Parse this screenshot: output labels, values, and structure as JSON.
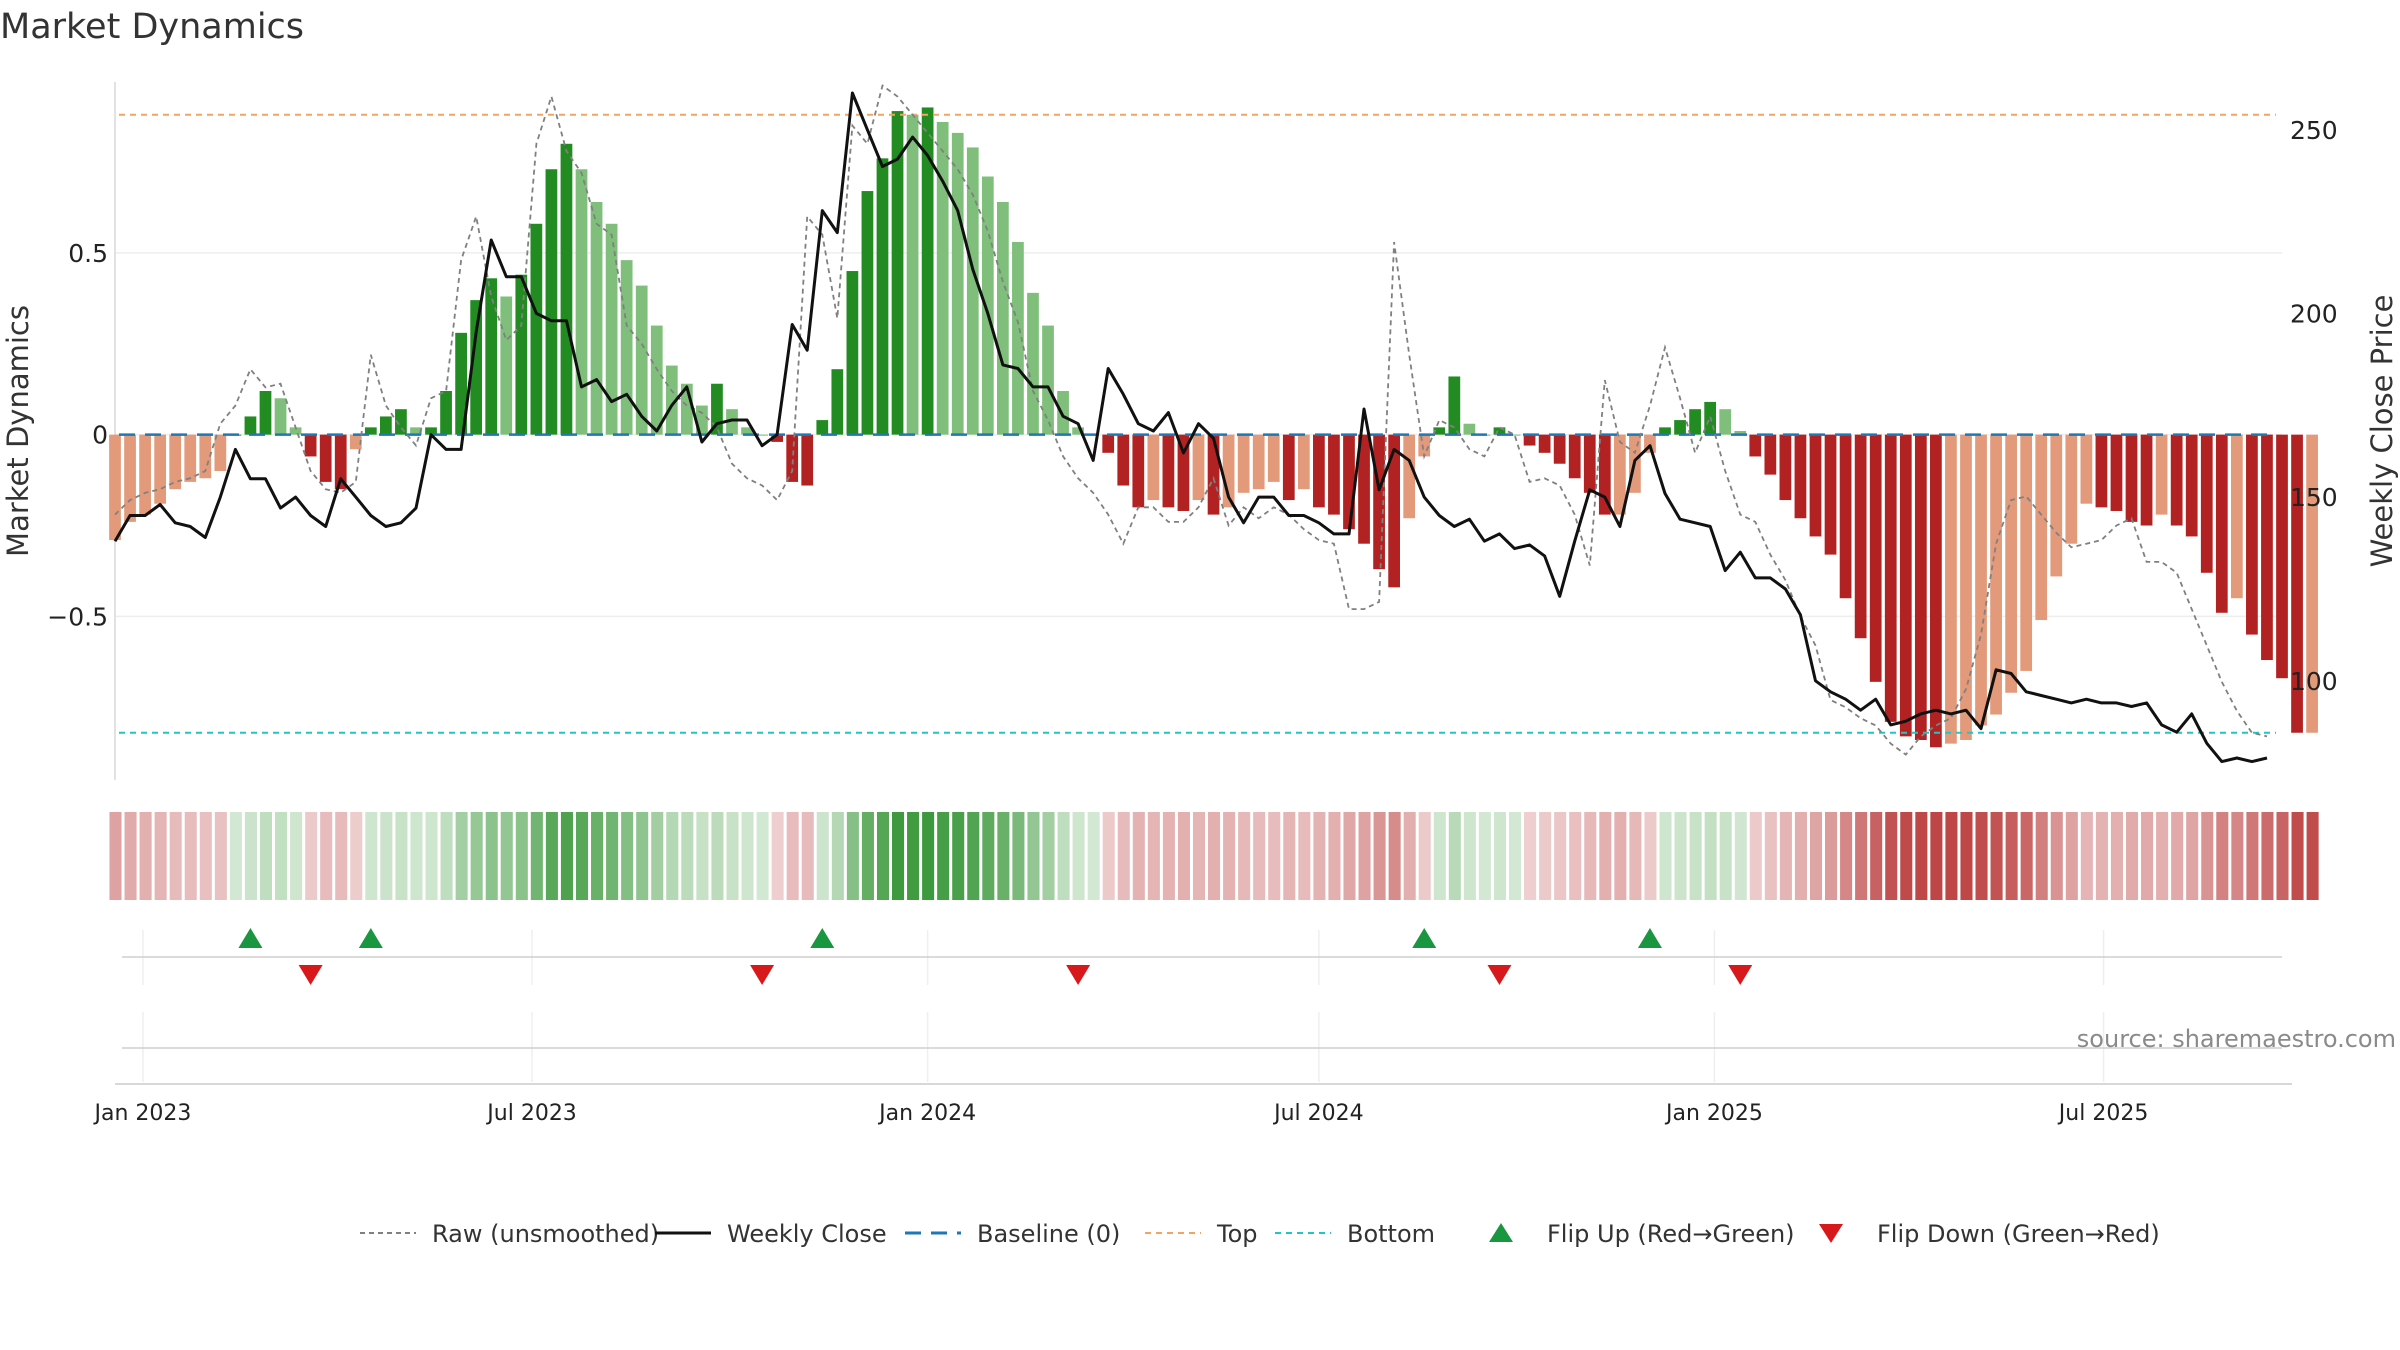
{
  "chart_data": {
    "type": "bar+line",
    "title": "Market Dynamics",
    "source": "source: sharemaestro.com",
    "left_axis": {
      "label": "Market Dynamics",
      "ylim": [
        -0.95,
        0.97
      ],
      "ticks": [
        -0.5,
        0,
        0.5
      ],
      "tick_labels": [
        "−0.5",
        "0",
        "0.5"
      ]
    },
    "right_axis": {
      "label": "Weekly Close Price",
      "ylim": [
        73,
        263
      ],
      "ticks": [
        100,
        150,
        200,
        250
      ],
      "tick_labels": [
        "100",
        "150",
        "200",
        "250"
      ]
    },
    "x_axis": {
      "start": "2022-12-19",
      "end": "2025-09-22",
      "ticks": [
        {
          "date": "2023-01-01",
          "label": "Jan 2023"
        },
        {
          "date": "2023-07-01",
          "label": "Jul 2023"
        },
        {
          "date": "2024-01-01",
          "label": "Jan 2024"
        },
        {
          "date": "2024-07-01",
          "label": "Jul 2024"
        },
        {
          "date": "2025-01-01",
          "label": "Jan 2025"
        },
        {
          "date": "2025-07-01",
          "label": "Jul 2025"
        }
      ]
    },
    "first_week": "2022-12-19",
    "top_level": 0.88,
    "bottom_level": -0.82,
    "baseline": 0,
    "dynamics": [
      -0.29,
      -0.24,
      -0.22,
      -0.19,
      -0.15,
      -0.13,
      -0.12,
      -0.1,
      0,
      0.05,
      0.12,
      0.1,
      0.02,
      -0.06,
      -0.13,
      -0.15,
      -0.04,
      0.02,
      0.05,
      0.07,
      0.02,
      0.02,
      0.12,
      0.28,
      0.37,
      0.43,
      0.38,
      0.44,
      0.58,
      0.73,
      0.8,
      0.73,
      0.64,
      0.58,
      0.48,
      0.41,
      0.3,
      0.19,
      0.14,
      0.08,
      0.14,
      0.07,
      0.02,
      0,
      -0.02,
      -0.13,
      -0.14,
      0.04,
      0.18,
      0.45,
      0.67,
      0.76,
      0.89,
      0.88,
      0.9,
      0.86,
      0.83,
      0.79,
      0.71,
      0.64,
      0.53,
      0.39,
      0.3,
      0.12,
      0.02,
      0,
      -0.05,
      -0.14,
      -0.2,
      -0.18,
      -0.2,
      -0.21,
      -0.18,
      -0.22,
      -0.2,
      -0.16,
      -0.15,
      -0.13,
      -0.18,
      -0.15,
      -0.2,
      -0.22,
      -0.26,
      -0.3,
      -0.37,
      -0.42,
      -0.23,
      -0.06,
      0.02,
      0.16,
      0.03,
      0,
      0.02,
      0,
      -0.03,
      -0.05,
      -0.08,
      -0.12,
      -0.16,
      -0.22,
      -0.22,
      -0.16,
      -0.05,
      0.02,
      0.04,
      0.07,
      0.09,
      0.07,
      0.01,
      -0.06,
      -0.11,
      -0.18,
      -0.23,
      -0.28,
      -0.33,
      -0.45,
      -0.56,
      -0.68,
      -0.79,
      -0.83,
      -0.84,
      -0.86,
      -0.85,
      -0.84,
      -0.8,
      -0.77,
      -0.71,
      -0.65,
      -0.51,
      -0.39,
      -0.3,
      -0.19,
      -0.2,
      -0.21,
      -0.24,
      -0.25,
      -0.22,
      -0.25,
      -0.28,
      -0.38,
      -0.49,
      -0.45,
      -0.55,
      -0.62,
      -0.67,
      -0.82,
      -0.82
    ],
    "weekly_close": [
      138,
      145,
      145,
      148,
      143,
      142,
      139,
      150,
      163,
      155,
      155,
      147,
      150,
      145,
      142,
      155,
      150,
      145,
      142,
      143,
      147,
      167,
      163,
      163,
      195,
      220,
      210,
      210,
      200,
      198,
      198,
      180,
      182,
      176,
      178,
      172,
      168,
      175,
      180,
      165,
      170,
      171,
      171,
      164,
      167,
      197,
      190,
      228,
      222,
      260,
      250,
      240,
      242,
      248,
      243,
      236,
      228,
      212,
      200,
      186,
      185,
      180,
      180,
      172,
      170,
      160,
      185,
      178,
      170,
      168,
      173,
      162,
      170,
      166,
      150,
      143,
      150,
      150,
      145,
      145,
      143,
      140,
      140,
      174,
      152,
      163,
      160,
      150,
      145,
      142,
      144,
      138,
      140,
      136,
      137,
      134,
      123,
      138,
      152,
      150,
      142,
      160,
      164,
      151,
      144,
      143,
      142,
      130,
      135,
      128,
      128,
      125,
      118,
      100,
      97,
      95,
      92,
      95,
      88,
      89,
      91,
      92,
      91,
      92,
      87,
      103,
      102,
      97,
      96,
      95,
      94,
      95,
      94,
      94,
      93,
      94,
      88,
      86,
      91,
      83,
      78,
      79,
      78,
      79
    ],
    "raw": [
      -0.22,
      -0.18,
      -0.16,
      -0.15,
      -0.13,
      -0.12,
      -0.1,
      0.03,
      0.08,
      0.18,
      0.13,
      0.14,
      0.02,
      -0.1,
      -0.15,
      -0.16,
      -0.13,
      0.22,
      0.08,
      0.02,
      -0.03,
      0.1,
      0.12,
      0.48,
      0.6,
      0.38,
      0.26,
      0.3,
      0.8,
      0.93,
      0.78,
      0.72,
      0.58,
      0.55,
      0.3,
      0.25,
      0.18,
      0.12,
      0.08,
      0.06,
      0.02,
      -0.08,
      -0.12,
      -0.14,
      -0.18,
      -0.1,
      0.6,
      0.55,
      0.32,
      0.85,
      0.8,
      0.96,
      0.93,
      0.88,
      0.83,
      0.78,
      0.73,
      0.66,
      0.56,
      0.42,
      0.31,
      0.12,
      0.04,
      -0.06,
      -0.12,
      -0.16,
      -0.22,
      -0.3,
      -0.2,
      -0.2,
      -0.24,
      -0.24,
      -0.2,
      -0.12,
      -0.25,
      -0.2,
      -0.23,
      -0.2,
      -0.22,
      -0.26,
      -0.29,
      -0.3,
      -0.48,
      -0.48,
      -0.46,
      0.53,
      0.22,
      -0.06,
      0.04,
      0.02,
      -0.04,
      -0.06,
      0.02,
      0,
      -0.13,
      -0.12,
      -0.14,
      -0.22,
      -0.36,
      0.15,
      -0.02,
      -0.05,
      0.08,
      0.24,
      0.1,
      -0.05,
      0.05,
      -0.1,
      -0.22,
      -0.24,
      -0.33,
      -0.4,
      -0.5,
      -0.58,
      -0.73,
      -0.75,
      -0.78,
      -0.8,
      -0.85,
      -0.88,
      -0.83,
      -0.8,
      -0.78,
      -0.7,
      -0.55,
      -0.3,
      -0.18,
      -0.17,
      -0.22,
      -0.27,
      -0.31,
      -0.3,
      -0.29,
      -0.25,
      -0.23,
      -0.35,
      -0.35,
      -0.38,
      -0.48,
      -0.58,
      -0.68,
      -0.76,
      -0.82,
      -0.83
    ],
    "flip_up_weeks": [
      9,
      17,
      47,
      87,
      102
    ],
    "flip_down_weeks": [
      13,
      43,
      64,
      92,
      108
    ],
    "legend": [
      {
        "key": "raw",
        "label": "Raw (unsmoothed)"
      },
      {
        "key": "close",
        "label": "Weekly Close"
      },
      {
        "key": "baseline",
        "label": "Baseline (0)"
      },
      {
        "key": "top",
        "label": "Top"
      },
      {
        "key": "bottom",
        "label": "Bottom"
      },
      {
        "key": "flip_up",
        "label": "Flip Up (Red→Green)"
      },
      {
        "key": "flip_down",
        "label": "Flip Down (Green→Red)"
      }
    ],
    "legend_placement": "bottom",
    "grid": true,
    "colors": {
      "green_strong": "#228b22",
      "green_light": "#7fbf7b",
      "red_strong": "#b22222",
      "red_light": "#e39a7a",
      "close_line": "#111111",
      "raw_line": "#808080",
      "baseline": "#1f77b4",
      "top": "#f4a460",
      "bottom": "#20c5c5",
      "flip_up": "#1a9641",
      "flip_down": "#d7191c"
    }
  }
}
